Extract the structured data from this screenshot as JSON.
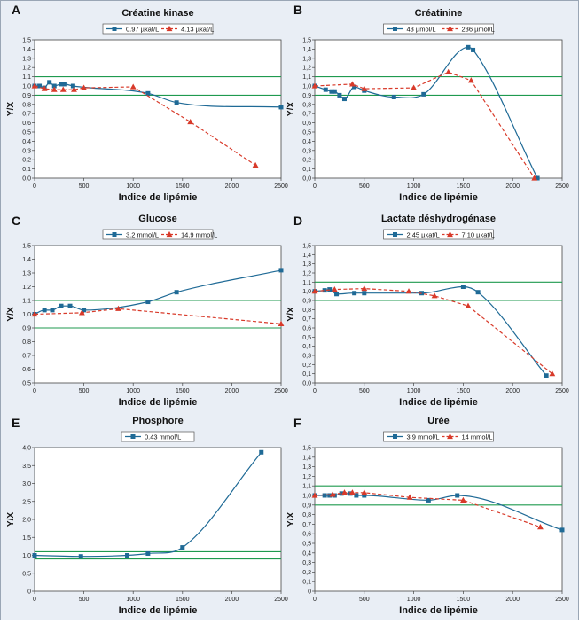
{
  "colors": {
    "background": "#e9eef5",
    "series_blue": "#1f6a96",
    "series_red": "#d83a2a",
    "reference_green": "#1f9a4f"
  },
  "chart_data": [
    {
      "panel": "A",
      "title": "Créatine kinase",
      "type": "line",
      "xlabel": "Indice de lipémie",
      "ylabel": "Y/X",
      "xlim": [
        0,
        2500
      ],
      "ylim": [
        0,
        1.5
      ],
      "xticks": [
        "0",
        "500",
        "1000",
        "1500",
        "2000",
        "2500"
      ],
      "yticks": [
        "0,0",
        "0,1",
        "0,2",
        "0,3",
        "0,4",
        "0,5",
        "0,6",
        "0,7",
        "0,8",
        "0,9",
        "1,0",
        "1,1",
        "1,2",
        "1,3",
        "1,4",
        "1,5"
      ],
      "reference_lines": [
        0.9,
        1.1
      ],
      "legend": "top",
      "series": [
        {
          "name": "0.97 µkat/L",
          "color": "#1f6a96",
          "marker": "square",
          "dash": "solid",
          "x": [
            0,
            50,
            100,
            150,
            200,
            270,
            300,
            390,
            1150,
            1440,
            2500
          ],
          "y": [
            1.0,
            1.0,
            0.98,
            1.04,
            1.0,
            1.02,
            1.02,
            1.0,
            0.92,
            0.82,
            0.77
          ]
        },
        {
          "name": "4.13 µkat/L",
          "color": "#d83a2a",
          "marker": "triangle",
          "dash": "dashed",
          "x": [
            0,
            100,
            200,
            290,
            400,
            500,
            1000,
            1580,
            2240
          ],
          "y": [
            1.0,
            0.97,
            0.96,
            0.96,
            0.96,
            0.98,
            0.99,
            0.61,
            0.14
          ]
        }
      ]
    },
    {
      "panel": "B",
      "title": "Créatinine",
      "type": "line",
      "xlabel": "Indice de lipémie",
      "ylabel": "Y/X",
      "xlim": [
        0,
        2500
      ],
      "ylim": [
        0,
        1.5
      ],
      "xticks": [
        "0",
        "500",
        "1000",
        "1500",
        "2000",
        "2500"
      ],
      "yticks": [
        "0,0",
        "0,1",
        "0,2",
        "0,3",
        "0,4",
        "0,5",
        "0,6",
        "0,7",
        "0,8",
        "0,9",
        "1,0",
        "1,1",
        "1,2",
        "1,3",
        "1,4",
        "1,5"
      ],
      "reference_lines": [
        0.9,
        1.1
      ],
      "legend": "top",
      "series": [
        {
          "name": "43 µmol/L",
          "color": "#1f6a96",
          "marker": "square",
          "dash": "solid",
          "x": [
            0,
            110,
            170,
            200,
            250,
            300,
            400,
            500,
            800,
            1100,
            1550,
            1600,
            2250
          ],
          "y": [
            1.0,
            0.96,
            0.94,
            0.94,
            0.9,
            0.86,
            0.99,
            0.95,
            0.88,
            0.91,
            1.42,
            1.39,
            0.0
          ]
        },
        {
          "name": "236 µmol/L",
          "color": "#d83a2a",
          "marker": "triangle",
          "dash": "dashed",
          "x": [
            0,
            380,
            500,
            1000,
            1350,
            1580,
            2220
          ],
          "y": [
            1.0,
            1.02,
            0.97,
            0.98,
            1.15,
            1.06,
            0.0
          ]
        }
      ]
    },
    {
      "panel": "C",
      "title": "Glucose",
      "type": "line",
      "xlabel": "Indice de lipémie",
      "ylabel": "Y/X",
      "xlim": [
        0,
        2500
      ],
      "ylim": [
        0.5,
        1.5
      ],
      "xticks": [
        "0",
        "500",
        "1000",
        "1500",
        "2000",
        "2500"
      ],
      "yticks": [
        "0,5",
        "0,6",
        "0,7",
        "0,8",
        "0,9",
        "1,0",
        "1,1",
        "1,2",
        "1,3",
        "1,4",
        "1,5"
      ],
      "reference_lines": [
        0.9,
        1.1
      ],
      "legend": "top",
      "series": [
        {
          "name": "3.2 mmol/L",
          "color": "#1f6a96",
          "marker": "square",
          "dash": "solid",
          "x": [
            0,
            100,
            180,
            270,
            360,
            500,
            1150,
            1440,
            2500
          ],
          "y": [
            1.0,
            1.03,
            1.03,
            1.06,
            1.06,
            1.03,
            1.09,
            1.16,
            1.32
          ]
        },
        {
          "name": "14.9 mmol/L",
          "color": "#d83a2a",
          "marker": "triangle",
          "dash": "dashed",
          "x": [
            0,
            480,
            850,
            2500
          ],
          "y": [
            1.0,
            1.01,
            1.04,
            0.93
          ]
        }
      ]
    },
    {
      "panel": "D",
      "title": "Lactate déshydrogénase",
      "type": "line",
      "xlabel": "Indice de lipémie",
      "ylabel": "Y/X",
      "xlim": [
        0,
        2500
      ],
      "ylim": [
        0,
        1.5
      ],
      "xticks": [
        "0",
        "500",
        "1000",
        "1500",
        "2000",
        "2500"
      ],
      "yticks": [
        "0,0",
        "0,1",
        "0,2",
        "0,3",
        "0,4",
        "0,5",
        "0,6",
        "0,7",
        "0,8",
        "0,9",
        "1,0",
        "1,1",
        "1,2",
        "1,3",
        "1,4",
        "1,5"
      ],
      "reference_lines": [
        0.9,
        1.1
      ],
      "legend": "top",
      "series": [
        {
          "name": "2.45 µkat/L",
          "color": "#1f6a96",
          "marker": "square",
          "dash": "solid",
          "x": [
            0,
            100,
            150,
            220,
            400,
            500,
            1080,
            1500,
            1650,
            2340
          ],
          "y": [
            1.0,
            1.01,
            1.02,
            0.97,
            0.98,
            0.98,
            0.98,
            1.05,
            0.99,
            0.08
          ]
        },
        {
          "name": "7.10 µkat/L",
          "color": "#d83a2a",
          "marker": "triangle",
          "dash": "dashed",
          "x": [
            0,
            200,
            500,
            950,
            1210,
            1550,
            2400
          ],
          "y": [
            1.0,
            1.02,
            1.03,
            1.0,
            0.95,
            0.84,
            0.1
          ]
        }
      ]
    },
    {
      "panel": "E",
      "title": "Phosphore",
      "type": "line",
      "xlabel": "Indice de lipémie",
      "ylabel": "Y/X",
      "xlim": [
        0,
        2500
      ],
      "ylim": [
        0,
        4.0
      ],
      "xticks": [
        "0",
        "500",
        "1000",
        "1500",
        "2000",
        "2500"
      ],
      "yticks": [
        "0",
        "0,5",
        "1,0",
        "1,5",
        "2,0",
        "2,5",
        "3,0",
        "3,5",
        "4,0"
      ],
      "reference_lines": [
        0.9,
        1.1
      ],
      "legend": "top",
      "series": [
        {
          "name": "0.43 mmol/L",
          "color": "#1f6a96",
          "marker": "square",
          "dash": "solid",
          "x": [
            0,
            470,
            940,
            1150,
            1500,
            2300
          ],
          "y": [
            1.0,
            0.97,
            1.0,
            1.05,
            1.22,
            3.87
          ]
        }
      ]
    },
    {
      "panel": "F",
      "title": "Urée",
      "type": "line",
      "xlabel": "Indice de lipémie",
      "ylabel": "Y/X",
      "xlim": [
        0,
        2500
      ],
      "ylim": [
        0,
        1.5
      ],
      "xticks": [
        "0",
        "500",
        "1000",
        "1500",
        "2000",
        "2500"
      ],
      "yticks": [
        "0",
        "0,1",
        "0,2",
        "0,3",
        "0,4",
        "0,5",
        "0,6",
        "0,7",
        "0,8",
        "0,9",
        "1,0",
        "1,1",
        "1,2",
        "1,3",
        "1,4",
        "1,5"
      ],
      "reference_lines": [
        0.9,
        1.1
      ],
      "legend": "top",
      "series": [
        {
          "name": "3.9 mmol/L",
          "color": "#1f6a96",
          "marker": "square",
          "dash": "solid",
          "x": [
            0,
            100,
            150,
            200,
            270,
            360,
            420,
            500,
            1150,
            1440,
            2500
          ],
          "y": [
            1.0,
            1.0,
            1.0,
            1.0,
            1.02,
            1.02,
            1.0,
            1.0,
            0.95,
            1.0,
            0.64
          ]
        },
        {
          "name": "14 mmol/L",
          "color": "#d83a2a",
          "marker": "triangle",
          "dash": "dashed",
          "x": [
            0,
            180,
            300,
            380,
            500,
            960,
            1500,
            2280
          ],
          "y": [
            1.0,
            1.01,
            1.03,
            1.03,
            1.03,
            0.98,
            0.95,
            0.67
          ]
        }
      ]
    }
  ]
}
